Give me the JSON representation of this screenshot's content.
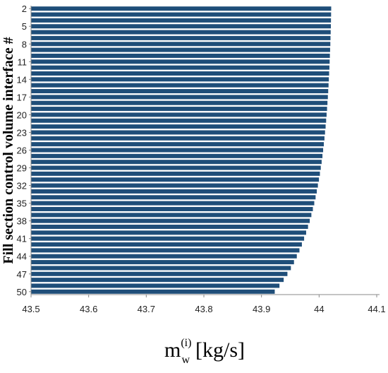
{
  "chart_data": {
    "type": "bar",
    "orientation": "horizontal",
    "title": "",
    "ylabel": "Fill section control volume interface #",
    "xlabel": {
      "base": "m",
      "subscript": "w",
      "superscript": "(i)",
      "unit": "[kg/s]"
    },
    "xlim": [
      43.5,
      44.1
    ],
    "x_ticks": [
      "43.5",
      "43.6",
      "43.7",
      "43.8",
      "43.9",
      "44",
      "44.1"
    ],
    "y_ticks": [
      "2",
      "5",
      "8",
      "11",
      "14",
      "17",
      "20",
      "23",
      "26",
      "29",
      "32",
      "35",
      "38",
      "41",
      "44",
      "47",
      "50"
    ],
    "grid": false,
    "bar_color": "#1f4e79",
    "categories": [
      2,
      3,
      4,
      5,
      6,
      7,
      8,
      9,
      10,
      11,
      12,
      13,
      14,
      15,
      16,
      17,
      18,
      19,
      20,
      21,
      22,
      23,
      24,
      25,
      26,
      27,
      28,
      29,
      30,
      31,
      32,
      33,
      34,
      35,
      36,
      37,
      38,
      39,
      40,
      41,
      42,
      43,
      44,
      45,
      46,
      47,
      48,
      49,
      50
    ],
    "values": [
      44.021,
      44.0208,
      44.0206,
      44.0204,
      44.0201,
      44.0198,
      44.0195,
      44.0191,
      44.0187,
      44.0183,
      44.0179,
      44.0174,
      44.0169,
      44.0164,
      44.0158,
      44.0152,
      44.0145,
      44.0138,
      44.013,
      44.0122,
      44.0113,
      44.0103,
      44.0093,
      44.0082,
      44.007,
      44.0058,
      44.0044,
      44.0029,
      44.0014,
      43.9997,
      43.9979,
      43.996,
      43.9939,
      43.9916,
      43.9892,
      43.9866,
      43.9838,
      43.9808,
      43.9775,
      43.974,
      43.9701,
      43.9659,
      43.9613,
      43.9564,
      43.951,
      43.945,
      43.9385,
      43.9312,
      43.923
    ]
  }
}
